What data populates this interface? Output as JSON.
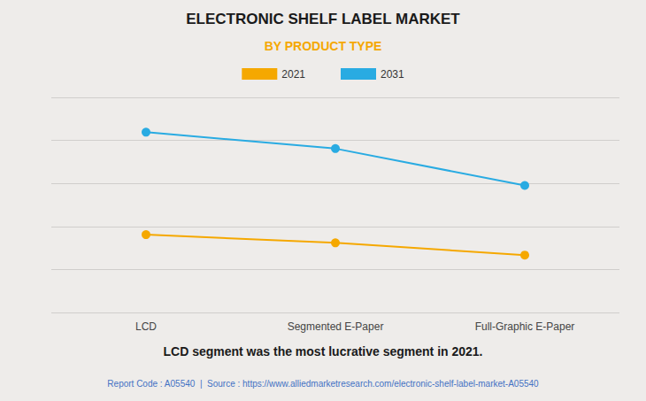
{
  "chart_data": {
    "type": "line",
    "title": "ELECTRONIC SHELF LABEL MARKET",
    "subtitle": "BY PRODUCT TYPE",
    "categories": [
      "LCD",
      "Segmented E-Paper",
      "Full-Graphic E-Paper"
    ],
    "series": [
      {
        "name": "2021",
        "color": "#F5A800",
        "values": [
          0.38,
          0.34,
          0.28
        ]
      },
      {
        "name": "2031",
        "color": "#29ABE2",
        "values": [
          0.88,
          0.8,
          0.62
        ]
      }
    ],
    "ylim": [
      0.0,
      1.05
    ],
    "yticks": [
      0,
      0.21,
      0.42,
      0.63,
      0.84,
      1.05
    ],
    "grid": true,
    "tick_labels": "x",
    "legend": "top",
    "marker": "circle",
    "annotations": [
      "LCD segment was the most lucrative segment in 2021.",
      "Report Code : A05540  |  Source : https://www.alliedmarketresearch.com/electronic-shelf-label-market-A05540"
    ]
  }
}
